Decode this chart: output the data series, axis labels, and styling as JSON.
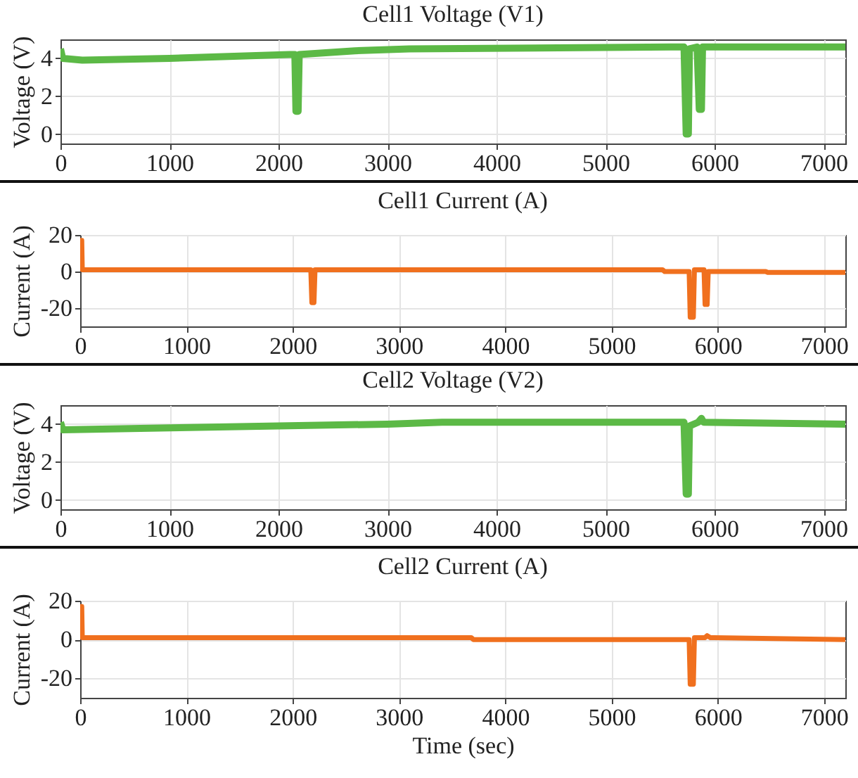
{
  "chart_data": [
    {
      "type": "line",
      "title": "Cell1 Voltage (V1)",
      "ylabel": "Voltage (V)",
      "xlim": [
        0,
        7200
      ],
      "xticks": [
        0,
        1000,
        2000,
        3000,
        4000,
        5000,
        6000,
        7000
      ],
      "ylim": [
        -0.5,
        5
      ],
      "yticks": [
        0,
        2,
        4
      ],
      "grid": true,
      "x": [
        0,
        20,
        200,
        1000,
        2100,
        2150,
        2160,
        2180,
        2190,
        2700,
        3200,
        5600,
        5720,
        5740,
        5760,
        5770,
        5840,
        5860,
        5880,
        5890,
        7200
      ],
      "series": [
        {
          "color": "#5cb946",
          "values": [
            4.5,
            4.0,
            3.9,
            4.0,
            4.2,
            4.2,
            1.2,
            1.2,
            4.2,
            4.4,
            4.5,
            4.6,
            4.6,
            0.0,
            0.0,
            4.5,
            4.6,
            1.3,
            1.3,
            4.6,
            4.6
          ]
        }
      ]
    },
    {
      "type": "line",
      "title": "Cell1 Current (A)",
      "ylabel": "Current (A)",
      "xlim": [
        0,
        7200
      ],
      "xticks": [
        0,
        1000,
        2000,
        3000,
        4000,
        5000,
        6000,
        7000
      ],
      "ylim": [
        -30,
        20
      ],
      "yticks": [
        -20,
        0,
        20
      ],
      "grid": true,
      "x": [
        0,
        15,
        20,
        2170,
        2180,
        2200,
        2210,
        5480,
        5500,
        5730,
        5740,
        5770,
        5780,
        5870,
        5880,
        5900,
        5910,
        6450,
        6470,
        7200
      ],
      "series": [
        {
          "color": "#f0701e",
          "values": [
            17,
            17,
            1,
            1,
            -17,
            -17,
            1,
            1,
            0,
            0,
            -25,
            -25,
            1,
            1,
            -18,
            -18,
            0,
            0,
            -0.5,
            -0.5
          ]
        }
      ]
    },
    {
      "type": "line",
      "title": "Cell2 Voltage (V2)",
      "ylabel": "Voltage (V)",
      "xlim": [
        0,
        7200
      ],
      "xticks": [
        0,
        1000,
        2000,
        3000,
        4000,
        5000,
        6000,
        7000
      ],
      "ylim": [
        -0.5,
        5
      ],
      "yticks": [
        0,
        2,
        4
      ],
      "grid": true,
      "x": [
        0,
        20,
        1000,
        2000,
        3000,
        3500,
        5720,
        5740,
        5760,
        5770,
        5850,
        5880,
        5900,
        7200
      ],
      "series": [
        {
          "color": "#5cb946",
          "values": [
            4.1,
            3.7,
            3.8,
            3.9,
            4.0,
            4.1,
            4.1,
            0.3,
            0.3,
            3.9,
            4.1,
            4.3,
            4.1,
            4.0
          ]
        }
      ]
    },
    {
      "type": "line",
      "title": "Cell2 Current (A)",
      "xlabel": "Time (sec)",
      "ylabel": "Current (A)",
      "xlim": [
        0,
        7200
      ],
      "xticks": [
        0,
        1000,
        2000,
        3000,
        4000,
        5000,
        6000,
        7000
      ],
      "ylim": [
        -30,
        20
      ],
      "yticks": [
        -20,
        0,
        20
      ],
      "grid": true,
      "x": [
        0,
        15,
        20,
        3680,
        3700,
        5730,
        5740,
        5770,
        5780,
        5880,
        5900,
        5930,
        7200
      ],
      "series": [
        {
          "color": "#f0701e",
          "values": [
            17,
            17,
            1,
            1,
            0,
            0,
            -23,
            -23,
            1,
            1,
            2,
            1,
            0
          ]
        }
      ]
    }
  ]
}
